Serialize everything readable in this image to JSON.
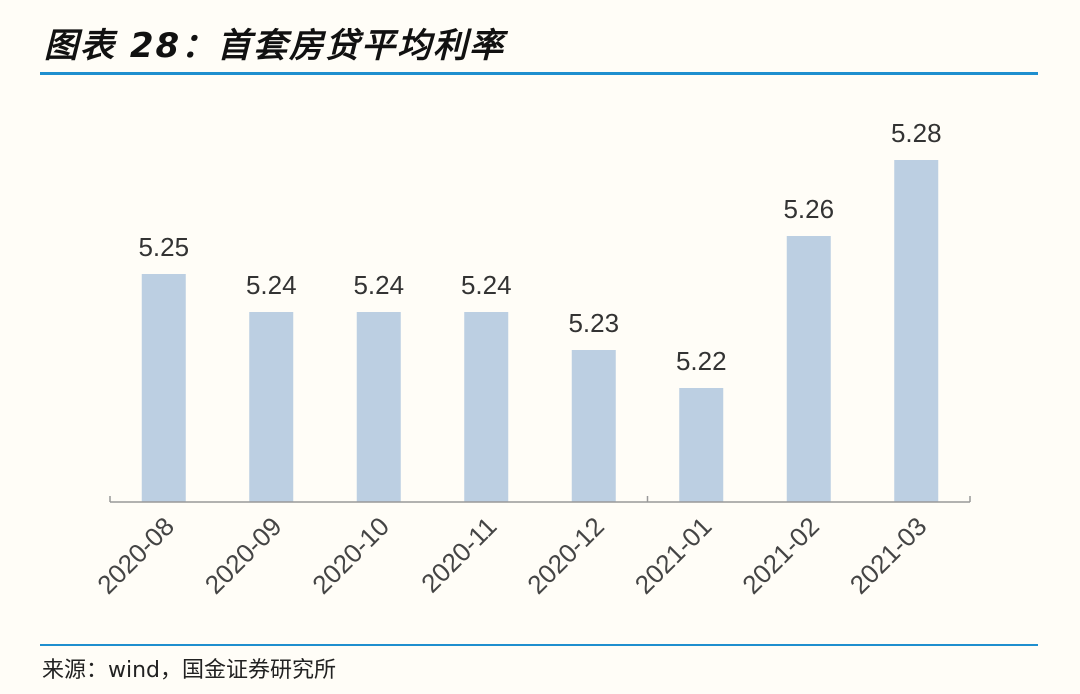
{
  "header": {
    "title": "图表 28：首套房贷平均利率"
  },
  "footer": {
    "source": "来源：wind，国金证券研究所"
  },
  "colors": {
    "accent_rule": "#1f8fcf",
    "bar": "#bccfe2",
    "axis": "#999999"
  },
  "chart_data": {
    "type": "bar",
    "title": "图表 28：首套房贷平均利率",
    "categories": [
      "2020-08",
      "2020-09",
      "2020-10",
      "2020-11",
      "2020-12",
      "2021-01",
      "2021-02",
      "2021-03"
    ],
    "values": [
      5.25,
      5.24,
      5.24,
      5.24,
      5.23,
      5.22,
      5.26,
      5.28
    ],
    "data_labels": [
      "5.25",
      "5.24",
      "5.24",
      "5.24",
      "5.23",
      "5.22",
      "5.26",
      "5.28"
    ],
    "xlabel": "",
    "ylabel": "",
    "ylim": [
      5.19,
      5.28
    ],
    "grid": false,
    "legend": false,
    "x_tick_rotation": -45
  }
}
